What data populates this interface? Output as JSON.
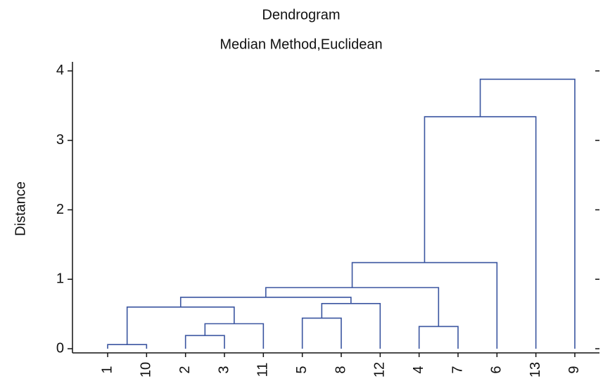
{
  "chart_data": {
    "type": "dendrogram",
    "title": "Dendrogram",
    "subtitle": "Median Method,Euclidean",
    "y_label": "Distance",
    "leaves": [
      "1",
      "10",
      "2",
      "3",
      "11",
      "5",
      "8",
      "12",
      "4",
      "7",
      "6",
      "13",
      "9"
    ],
    "merges": [
      {
        "left": 0,
        "right": 1,
        "height": 0.06
      },
      {
        "left": 2,
        "right": 3,
        "height": 0.19
      },
      {
        "left": 14,
        "right": 4,
        "height": 0.36
      },
      {
        "left": 5,
        "right": 6,
        "height": 0.44
      },
      {
        "left": 16,
        "right": 7,
        "height": 0.65
      },
      {
        "left": 8,
        "right": 9,
        "height": 0.32
      },
      {
        "left": 13,
        "right": 15,
        "height": 0.6
      },
      {
        "left": 19,
        "right": 17,
        "height": 0.74
      },
      {
        "left": 20,
        "right": 18,
        "height": 0.88
      },
      {
        "left": 21,
        "right": 10,
        "height": 1.24
      },
      {
        "left": 22,
        "right": 11,
        "height": 3.34
      },
      {
        "left": 23,
        "right": 12,
        "height": 3.88
      }
    ],
    "color": "#3a55a0",
    "ylim": [
      -0.06,
      4.11
    ],
    "yticks": [
      0,
      1,
      2,
      3,
      4
    ]
  }
}
